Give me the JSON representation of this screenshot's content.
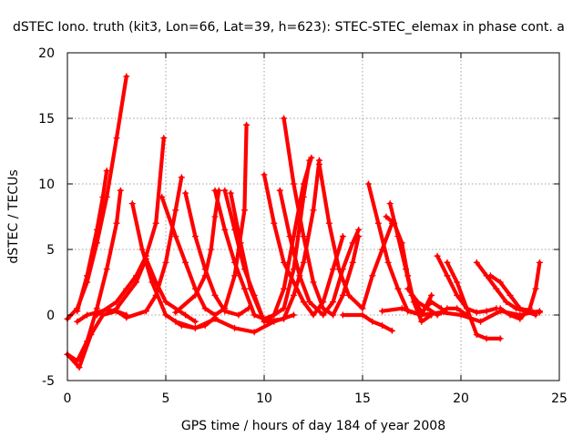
{
  "chart_data": {
    "type": "scatter",
    "title": "dSTEC Iono. truth (kit3, Lon=66, Lat=39, h=623): STEC-STEC_elemax in phase cont. a",
    "xlabel": "GPS time / hours of day 184 of year 2008",
    "ylabel": "dSTEC  / TECUs",
    "xlim": [
      0,
      25
    ],
    "ylim": [
      -5,
      20
    ],
    "xticks": [
      "0",
      "5",
      "10",
      "15",
      "20",
      "25"
    ],
    "yticks": [
      "-5",
      "0",
      "5",
      "10",
      "15",
      "20"
    ],
    "grid": true,
    "legend": "none",
    "marker": "+",
    "color": "#ff0000",
    "series": [
      {
        "points": [
          [
            0,
            -0.3
          ],
          [
            0.5,
            0.5
          ],
          [
            1,
            2.5
          ],
          [
            1.5,
            5.5
          ],
          [
            2,
            9
          ],
          [
            2.5,
            13.5
          ],
          [
            3,
            18.2
          ]
        ]
      },
      {
        "points": [
          [
            0.5,
            0.3
          ],
          [
            1,
            3
          ],
          [
            1.5,
            6.5
          ],
          [
            1.8,
            9
          ],
          [
            2,
            11
          ]
        ]
      },
      {
        "points": [
          [
            0,
            -3
          ],
          [
            0.5,
            -3.5
          ],
          [
            1,
            -2
          ],
          [
            1.5,
            0.5
          ],
          [
            2,
            3.5
          ],
          [
            2.5,
            7
          ],
          [
            2.7,
            9.5
          ]
        ]
      },
      {
        "points": [
          [
            0,
            -3
          ],
          [
            0.6,
            -4
          ],
          [
            1.2,
            -1.5
          ],
          [
            1.8,
            0
          ],
          [
            2.5,
            0.3
          ],
          [
            3,
            0
          ]
        ]
      },
      {
        "points": [
          [
            0.5,
            -0.5
          ],
          [
            1,
            0
          ],
          [
            1.5,
            0.2
          ],
          [
            2,
            0.4
          ],
          [
            2.5,
            0.3
          ],
          [
            3,
            -0.2
          ],
          [
            4,
            0.3
          ],
          [
            4.5,
            1.5
          ],
          [
            5,
            4
          ],
          [
            5.5,
            8
          ],
          [
            5.8,
            10.5
          ]
        ]
      },
      {
        "points": [
          [
            1.5,
            0
          ],
          [
            2.5,
            1
          ],
          [
            3,
            2
          ],
          [
            3.5,
            3
          ],
          [
            4,
            4.5
          ],
          [
            4.5,
            7
          ],
          [
            4.9,
            13.5
          ]
        ]
      },
      {
        "points": [
          [
            3.3,
            8.5
          ],
          [
            3.8,
            5
          ],
          [
            4.3,
            2.5
          ],
          [
            5,
            0
          ],
          [
            5.8,
            -0.8
          ],
          [
            6.5,
            -1
          ],
          [
            7,
            -0.8
          ],
          [
            7.5,
            -0.2
          ]
        ]
      },
      {
        "points": [
          [
            2.5,
            0.5
          ],
          [
            3.5,
            2.5
          ],
          [
            4,
            4.3
          ],
          [
            4.5,
            2.5
          ],
          [
            5,
            1
          ],
          [
            6,
            0
          ],
          [
            6.5,
            -0.5
          ]
        ]
      },
      {
        "points": [
          [
            4.8,
            9
          ],
          [
            5.5,
            6
          ],
          [
            6,
            4
          ],
          [
            6.5,
            2
          ],
          [
            7,
            0.5
          ],
          [
            7.5,
            0
          ],
          [
            8,
            0.5
          ],
          [
            8.5,
            3
          ],
          [
            9,
            8
          ],
          [
            9.1,
            14.5
          ]
        ]
      },
      {
        "points": [
          [
            5.5,
            0.2
          ],
          [
            6.5,
            1.5
          ],
          [
            7,
            3
          ],
          [
            7.3,
            5
          ],
          [
            7.5,
            7.5
          ],
          [
            7.7,
            9.5
          ]
        ]
      },
      {
        "points": [
          [
            6,
            9.3
          ],
          [
            6.5,
            6
          ],
          [
            7,
            3.5
          ],
          [
            7.5,
            1.5
          ],
          [
            8,
            0.3
          ],
          [
            8.7,
            0
          ],
          [
            9.2,
            0.5
          ]
        ]
      },
      {
        "points": [
          [
            7.5,
            9.5
          ],
          [
            8,
            6.5
          ],
          [
            8.5,
            4
          ],
          [
            9,
            2
          ],
          [
            9.5,
            0
          ],
          [
            10,
            -0.3
          ],
          [
            10.5,
            0
          ],
          [
            11,
            2
          ],
          [
            11.5,
            6
          ],
          [
            12,
            10
          ],
          [
            12.4,
            12
          ]
        ]
      },
      {
        "points": [
          [
            8,
            9.5
          ],
          [
            8.5,
            6.5
          ],
          [
            9,
            3.5
          ],
          [
            9.5,
            1.5
          ],
          [
            10,
            -0.5
          ],
          [
            11,
            0.5
          ],
          [
            11.5,
            3.5
          ],
          [
            12,
            9
          ],
          [
            12.3,
            11.8
          ]
        ]
      },
      {
        "points": [
          [
            8.3,
            9.3
          ],
          [
            8.8,
            5.5
          ],
          [
            9.3,
            2
          ],
          [
            10,
            -0.5
          ],
          [
            11,
            -0.3
          ],
          [
            11.5,
            1.5
          ],
          [
            12,
            4
          ],
          [
            12.5,
            8
          ],
          [
            12.8,
            11.8
          ]
        ]
      },
      {
        "points": [
          [
            10,
            10.7
          ],
          [
            10.5,
            7
          ],
          [
            11,
            4
          ],
          [
            11.5,
            2.5
          ],
          [
            12,
            1
          ],
          [
            12.5,
            0
          ],
          [
            13,
            1
          ],
          [
            13.5,
            3.5
          ],
          [
            14,
            6
          ]
        ]
      },
      {
        "points": [
          [
            11,
            15
          ],
          [
            11.5,
            10
          ],
          [
            12,
            6
          ],
          [
            12.5,
            2.5
          ],
          [
            13,
            0.5
          ],
          [
            13.5,
            0
          ],
          [
            14,
            1.5
          ],
          [
            14.5,
            4
          ],
          [
            14.8,
            6
          ]
        ]
      },
      {
        "points": [
          [
            10.8,
            9.5
          ],
          [
            11.3,
            6
          ],
          [
            11.8,
            3
          ],
          [
            12.3,
            1
          ],
          [
            13,
            0
          ],
          [
            13.5,
            1
          ],
          [
            14,
            3.5
          ],
          [
            14.5,
            5.5
          ],
          [
            14.8,
            6.5
          ]
        ]
      },
      {
        "points": [
          [
            12.8,
            11.5
          ],
          [
            13.3,
            7
          ],
          [
            13.8,
            3.5
          ],
          [
            14.3,
            1.5
          ],
          [
            15,
            0.5
          ],
          [
            15.5,
            3
          ],
          [
            16,
            5
          ],
          [
            16.5,
            7
          ]
        ]
      },
      {
        "points": [
          [
            15.3,
            10
          ],
          [
            15.8,
            7
          ],
          [
            16.3,
            4
          ],
          [
            16.8,
            2
          ],
          [
            17.3,
            0.3
          ],
          [
            18,
            0
          ],
          [
            18.5,
            1.5
          ]
        ]
      },
      {
        "points": [
          [
            16.2,
            7.5
          ],
          [
            16.6,
            7
          ],
          [
            17,
            5.5
          ],
          [
            17.3,
            3
          ],
          [
            17.6,
            1
          ],
          [
            18,
            -0.5
          ],
          [
            18.5,
            0
          ]
        ]
      },
      {
        "points": [
          [
            16.4,
            8.5
          ],
          [
            16.8,
            6
          ],
          [
            17.2,
            3.5
          ],
          [
            17.5,
            1.5
          ],
          [
            18,
            0.2
          ],
          [
            18.5,
            1
          ],
          [
            19,
            0.5
          ]
        ]
      },
      {
        "points": [
          [
            17.3,
            2
          ],
          [
            17.8,
            1
          ],
          [
            18.3,
            0.5
          ],
          [
            18.8,
            0
          ],
          [
            19.3,
            0.5
          ],
          [
            19.8,
            0.5
          ],
          [
            20.3,
            0
          ]
        ]
      },
      {
        "points": [
          [
            18.8,
            4.5
          ],
          [
            19.3,
            3
          ],
          [
            19.8,
            1.5
          ],
          [
            20.3,
            0.5
          ],
          [
            20.8,
            0.2
          ],
          [
            21.3,
            0.3
          ],
          [
            21.8,
            0.5
          ]
        ]
      },
      {
        "points": [
          [
            19.3,
            4
          ],
          [
            19.8,
            2.5
          ],
          [
            20.3,
            0.5
          ],
          [
            20.8,
            -1.5
          ],
          [
            21.3,
            -1.8
          ],
          [
            22,
            -1.8
          ]
        ]
      },
      {
        "points": [
          [
            20.8,
            4
          ],
          [
            21.3,
            3
          ],
          [
            21.8,
            2
          ],
          [
            22.3,
            1
          ],
          [
            22.8,
            0.5
          ],
          [
            23.3,
            0.3
          ],
          [
            23.8,
            0
          ]
        ]
      },
      {
        "points": [
          [
            21.5,
            3
          ],
          [
            22,
            2.5
          ],
          [
            22.5,
            1.5
          ],
          [
            23,
            0.5
          ],
          [
            23.5,
            0.3
          ],
          [
            24,
            0.2
          ]
        ]
      },
      {
        "points": [
          [
            22,
            0.5
          ],
          [
            22.5,
            0
          ],
          [
            23,
            -0.3
          ],
          [
            23.5,
            0.5
          ],
          [
            23.8,
            2
          ],
          [
            24,
            4
          ]
        ]
      },
      {
        "points": [
          [
            5.5,
            -0.5
          ],
          [
            6.5,
            -1
          ],
          [
            7.5,
            -0.3
          ],
          [
            8.5,
            -1
          ],
          [
            9.5,
            -1.3
          ],
          [
            10.5,
            -0.5
          ],
          [
            11.5,
            0
          ]
        ]
      },
      {
        "points": [
          [
            14,
            0
          ],
          [
            15,
            0
          ],
          [
            15.5,
            -0.5
          ],
          [
            16,
            -0.8
          ],
          [
            16.5,
            -1.2
          ]
        ]
      },
      {
        "points": [
          [
            16,
            0.3
          ],
          [
            17,
            0.5
          ],
          [
            18,
            0
          ],
          [
            19,
            0.2
          ],
          [
            20,
            0
          ],
          [
            21,
            -0.5
          ],
          [
            22,
            0.3
          ],
          [
            23,
            0
          ],
          [
            24,
            0.3
          ]
        ]
      }
    ]
  }
}
